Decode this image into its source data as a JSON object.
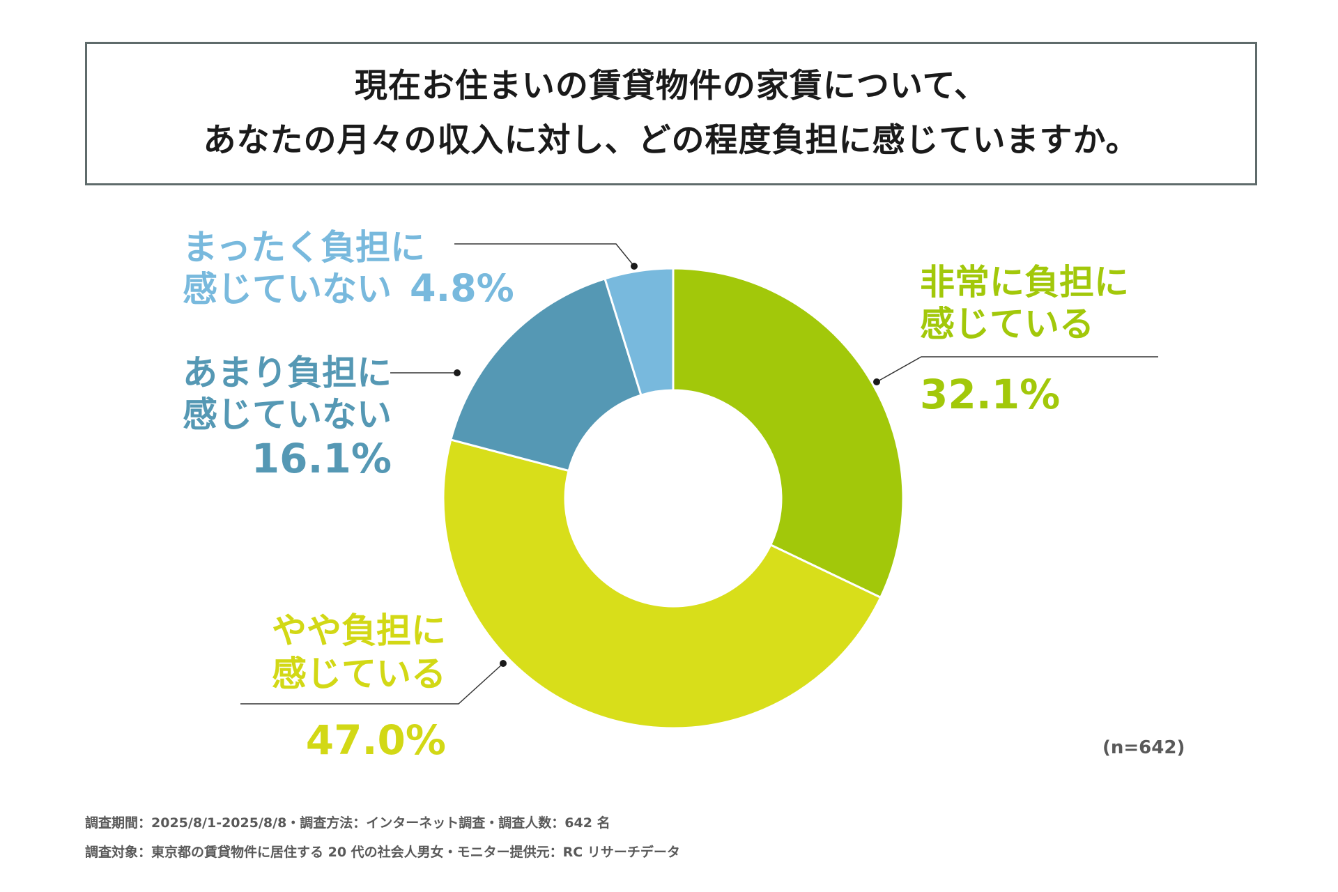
{
  "title": {
    "line1": "現在お住まいの賃貸物件の家賃について、",
    "line2": "あなたの月々の収入に対し、どの程度負担に感じていますか。"
  },
  "chart_data": {
    "type": "pie",
    "donut": true,
    "start": "top",
    "direction": "clockwise",
    "slices": [
      {
        "line1": "非常に負担に",
        "line2": "感じている",
        "value": 32.1,
        "value_label": "32.1%",
        "color": "#a2c80a"
      },
      {
        "line1": "やや負担に",
        "line2": "感じている",
        "value": 47.0,
        "value_label": "47.0%",
        "color": "#d8de1a"
      },
      {
        "line1": "あまり負担に",
        "line2": "感じていない",
        "value": 16.1,
        "value_label": "16.1%",
        "color": "#5598b4"
      },
      {
        "line1": "まったく負担に",
        "line2": "感じていない",
        "value": 4.8,
        "value_label": "4.8%",
        "color": "#78b9dd"
      }
    ]
  },
  "n_count": "(n=642)",
  "footer": {
    "line1": "調査期間：2025/8/1-2025/8/8・調査方法：インターネット調査・調査人数：642 名",
    "line2": "調査対象：東京都の賃貸物件に居住する 20 代の社会人男女・モニター提供元：RC リサーチデータ"
  }
}
